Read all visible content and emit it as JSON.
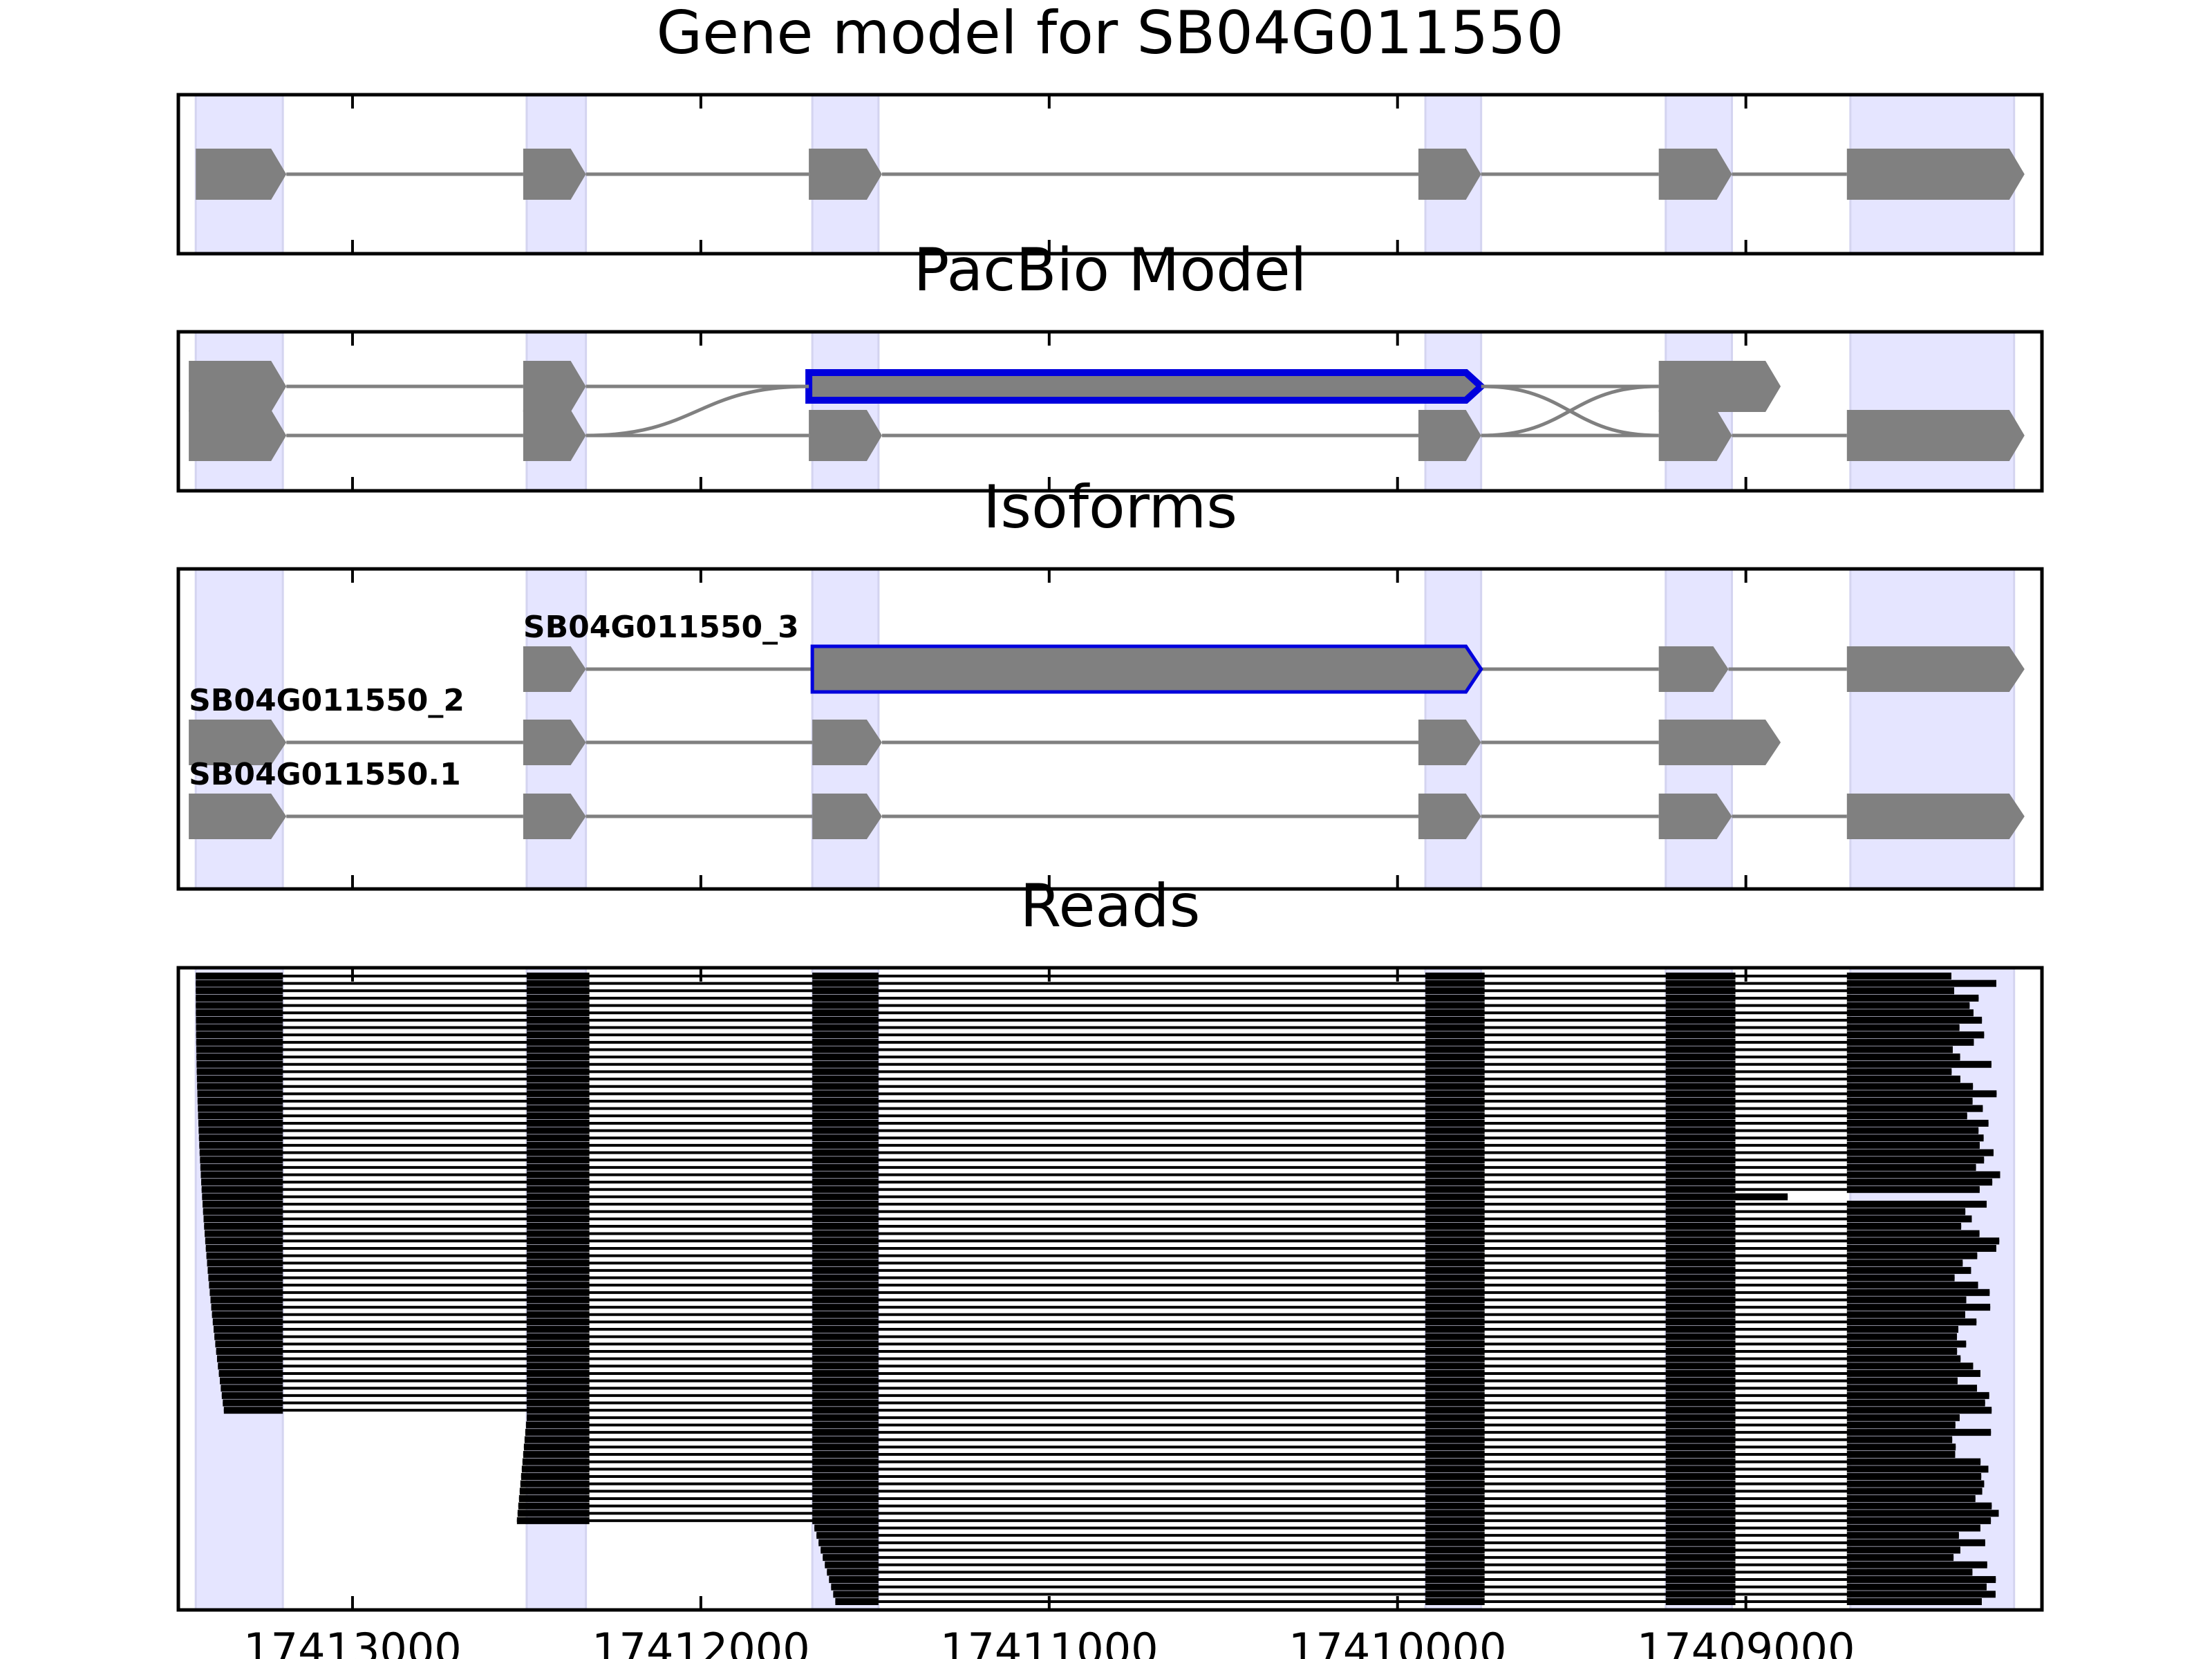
{
  "chart_data": {
    "type": "gene_track",
    "xlim": [
      17413500,
      17408150
    ],
    "x_reversed": true,
    "xticks": [
      17413000,
      17412000,
      17411000,
      17410000,
      17409000
    ],
    "xtick_labels": [
      "17413000",
      "17412000",
      "17411000",
      "17410000",
      "17409000"
    ],
    "colors": {
      "exon": "#808080",
      "intron": "#808080",
      "highlight_region": "#e5e5ff",
      "highlight_border": "#0000dd",
      "read": "#000000"
    },
    "highlight_regions": [
      [
        17413450,
        17413200
      ],
      [
        17412500,
        17412330
      ],
      [
        17411680,
        17411490
      ],
      [
        17409920,
        17409760
      ],
      [
        17409230,
        17409040
      ],
      [
        17408700,
        17408230
      ]
    ],
    "panels": [
      {
        "title": "Gene model for SB04G011550",
        "transcripts": [
          {
            "exons": [
              [
                17413450,
                17413190
              ],
              [
                17412510,
                17412330
              ],
              [
                17411690,
                17411480
              ],
              [
                17409940,
                17409760
              ],
              [
                17409250,
                17409040
              ],
              [
                17408710,
                17408200
              ]
            ]
          }
        ]
      },
      {
        "title": "PacBio Model",
        "transcripts": [
          {
            "exons": [
              [
                17413470,
                17413190
              ],
              [
                17412510,
                17412330
              ],
              [
                17411690,
                17409760
              ],
              [
                17409250,
                17408900
              ]
            ],
            "highlight_exon": 2
          },
          {
            "exons": [
              [
                17413470,
                17413190
              ],
              [
                17412510,
                17412330
              ],
              [
                17411690,
                17411480
              ],
              [
                17409940,
                17409760
              ],
              [
                17409250,
                17409040
              ],
              [
                17408710,
                17408200
              ]
            ]
          }
        ]
      },
      {
        "title": "Isoforms",
        "transcripts": [
          {
            "label": "SB04G011550_3",
            "exons": [
              [
                17412510,
                17412330
              ],
              [
                17411680,
                17409760
              ],
              [
                17409250,
                17409050
              ],
              [
                17408710,
                17408200
              ]
            ],
            "highlight_exon": 1
          },
          {
            "label": "SB04G011550_2",
            "exons": [
              [
                17413470,
                17413190
              ],
              [
                17412510,
                17412330
              ],
              [
                17411680,
                17411480
              ],
              [
                17409940,
                17409760
              ],
              [
                17409250,
                17408900
              ]
            ]
          },
          {
            "label": "SB04G011550.1",
            "exons": [
              [
                17413470,
                17413190
              ],
              [
                17412510,
                17412330
              ],
              [
                17411680,
                17411480
              ],
              [
                17409940,
                17409760
              ],
              [
                17409250,
                17409040
              ],
              [
                17408710,
                17408200
              ]
            ]
          }
        ]
      },
      {
        "title": "Reads",
        "reads": {
          "count": 86,
          "exon_bounds": [
            [
              17413450,
              17413200
            ],
            [
              17412500,
              17412320
            ],
            [
              17411680,
              17411490
            ],
            [
              17409920,
              17409750
            ],
            [
              17409230,
              17409030
            ],
            [
              17408710,
              17408200
            ]
          ],
          "first_read_start": 17413450,
          "last_read_start_min": 17413270,
          "read_end_min": 17408410,
          "read_end_max": 17408270,
          "truncated_reads": [
            {
              "index": 30,
              "start": 17413450,
              "end": 17408880
            }
          ],
          "late_start_reads": {
            "from_index": 60,
            "start_first_exon": 1
          }
        }
      }
    ]
  }
}
